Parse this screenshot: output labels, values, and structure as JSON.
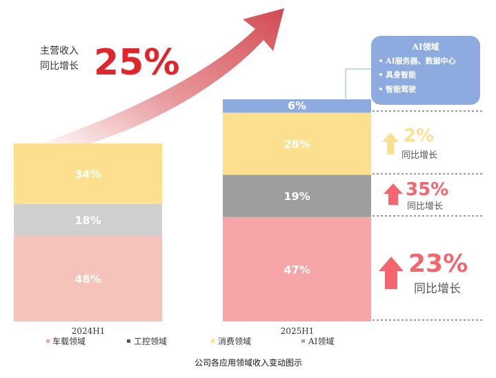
{
  "chart_data": {
    "type": "bar",
    "stacked": true,
    "title": "公司各应用领域收入变动图示",
    "categories": [
      "2024H1",
      "2025H1"
    ],
    "series": [
      {
        "name": "车载领域",
        "color": "#f6a6a8",
        "values": [
          48,
          47
        ]
      },
      {
        "name": "工控领域",
        "color": "#9e9e9e",
        "values": [
          18,
          19
        ]
      },
      {
        "name": "消费领域",
        "color": "#fde08f",
        "values": [
          34,
          28
        ]
      },
      {
        "name": "AI领域",
        "color": "#8eabdf",
        "values": [
          0,
          6
        ]
      }
    ],
    "bar_colors_2024": [
      "#f6c3bb",
      "#d0d0d0",
      "#fde08f",
      "#8eabdf"
    ],
    "labels": [
      [
        "48%",
        "18%",
        "34%",
        ""
      ],
      [
        "47%",
        "19%",
        "28%",
        "6%"
      ]
    ],
    "headline": {
      "text_line1": "主营收入",
      "text_line2": "同比增长",
      "value": "25%"
    },
    "ai_box": {
      "title": "AI领域",
      "items": [
        "AI服务器、数据中心",
        "具身智能",
        "智能驾驶"
      ]
    },
    "growth": [
      {
        "series": "消费领域",
        "value": "2%",
        "label": "同比增长",
        "color": "#fde08f"
      },
      {
        "series": "工控领域",
        "value": "35%",
        "label": "同比增长",
        "color": "#f3666e"
      },
      {
        "series": "车载领域",
        "value": "23%",
        "label": "同比增长",
        "color": "#f3666e"
      }
    ]
  }
}
